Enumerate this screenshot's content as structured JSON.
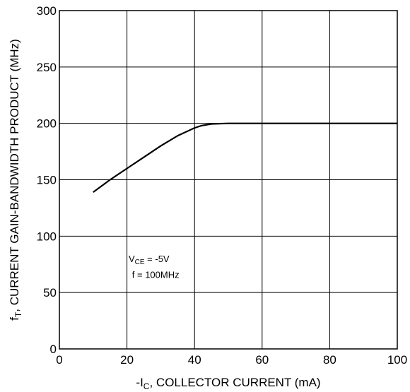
{
  "chart_data": {
    "type": "line",
    "xlabel": {
      "prefix": "-I",
      "sub": "C",
      "suffix": ", COLLECTOR CURRENT (mA)"
    },
    "ylabel": {
      "prefix": "f",
      "sub": "T",
      "suffix": ", CURRENT GAIN-BANDWIDTH PRODUCT (MHz)"
    },
    "xlim": [
      0,
      100
    ],
    "ylim": [
      0,
      300
    ],
    "xticks": [
      0,
      20,
      40,
      60,
      80,
      100
    ],
    "yticks": [
      0,
      50,
      100,
      150,
      200,
      250,
      300
    ],
    "grid": true,
    "series": [
      {
        "x": [
          10,
          15,
          20,
          25,
          30,
          35,
          40,
          42,
          45,
          50,
          60,
          70,
          80,
          90,
          100
        ],
        "y": [
          139,
          150,
          160,
          170,
          180,
          189,
          196,
          198,
          199.5,
          200,
          200,
          200,
          200,
          200,
          200
        ]
      }
    ],
    "annotations": [
      {
        "prefix": "V",
        "sub": "CE",
        "suffix": " = -5V"
      },
      {
        "text": "f = 100MHz"
      }
    ]
  }
}
